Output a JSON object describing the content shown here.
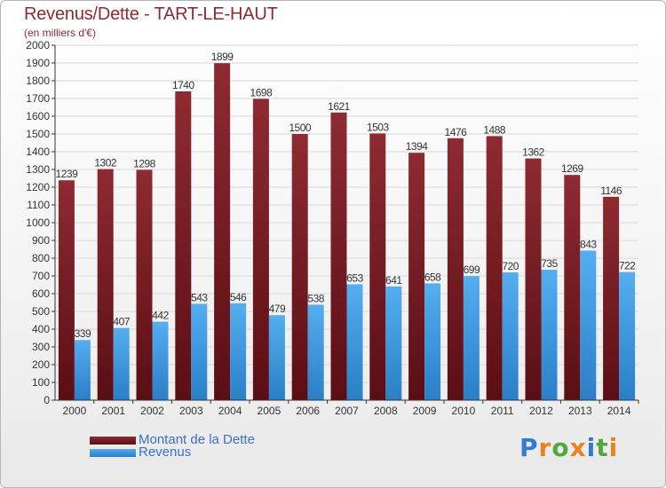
{
  "header": {
    "title": "Revenus/Dette - TART-LE-HAUT",
    "subtitle": "(en milliers d'€)"
  },
  "logo": {
    "letters": [
      "P",
      "r",
      "o",
      "x",
      "i",
      "t",
      "i"
    ],
    "colors": [
      "#2f7bd6",
      "#e8831f",
      "#52a83a",
      "#e8831f",
      "#2f7bd6",
      "#52a83a",
      "#e8831f"
    ]
  },
  "colors": {
    "debt": "#7a1c22",
    "revenue": "#3d9ae3",
    "axis": "#333333",
    "grid": "#d8d8d8"
  },
  "chart_data": {
    "type": "bar",
    "title": "Revenus/Dette - TART-LE-HAUT",
    "subtitle": "(en milliers d'€)",
    "categories": [
      "2000",
      "2001",
      "2002",
      "2003",
      "2004",
      "2005",
      "2006",
      "2007",
      "2008",
      "2009",
      "2010",
      "2011",
      "2012",
      "2013",
      "2014"
    ],
    "series": [
      {
        "name": "Montant de la Dette",
        "values": [
          1239,
          1302,
          1298,
          1740,
          1899,
          1698,
          1500,
          1621,
          1503,
          1394,
          1476,
          1488,
          1362,
          1269,
          1146
        ]
      },
      {
        "name": "Revenus",
        "values": [
          339,
          407,
          442,
          543,
          546,
          479,
          538,
          653,
          641,
          658,
          699,
          720,
          735,
          843,
          722
        ]
      }
    ],
    "ylim": [
      0,
      2000
    ],
    "yticks": [
      0,
      100,
      200,
      300,
      400,
      500,
      600,
      700,
      800,
      900,
      1000,
      1100,
      1200,
      1300,
      1400,
      1500,
      1600,
      1700,
      1800,
      1900,
      2000
    ],
    "grid": true,
    "legend": "bottom-left"
  }
}
